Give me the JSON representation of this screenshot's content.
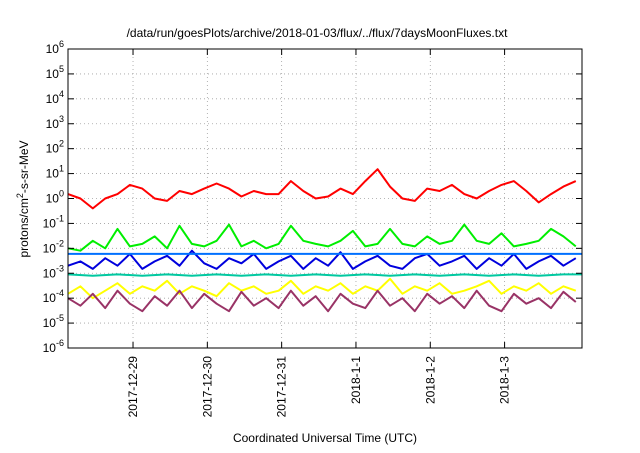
{
  "chart_data": {
    "type": "line",
    "title": "/data/run/goesPlots/archive/2018-01-03/flux/../flux/7daysMoonFluxes.txt",
    "xlabel": "Coordinated Universal Time (UTC)",
    "ylabel": {
      "base": "protons/cm",
      "sup": "2",
      "rest": "-s-sr-MeV"
    },
    "yscale": "log",
    "ylim": [
      1e-06,
      1000000.0
    ],
    "xlim": [
      "2017-12-28T03:00",
      "2018-01-04T01:00"
    ],
    "y_ticks": [
      {
        "value": 1e-06,
        "base": "10",
        "exp": "-6"
      },
      {
        "value": 1e-05,
        "base": "10",
        "exp": "-5"
      },
      {
        "value": 0.0001,
        "base": "10",
        "exp": "-4"
      },
      {
        "value": 0.001,
        "base": "10",
        "exp": "-3"
      },
      {
        "value": 0.01,
        "base": "10",
        "exp": "-2"
      },
      {
        "value": 0.1,
        "base": "10",
        "exp": "-1"
      },
      {
        "value": 1,
        "base": "10",
        "exp": "0"
      },
      {
        "value": 10,
        "base": "10",
        "exp": "1"
      },
      {
        "value": 100,
        "base": "10",
        "exp": "2"
      },
      {
        "value": 1000,
        "base": "10",
        "exp": "3"
      },
      {
        "value": 10000,
        "base": "10",
        "exp": "4"
      },
      {
        "value": 100000,
        "base": "10",
        "exp": "5"
      },
      {
        "value": 1000000,
        "base": "10",
        "exp": "6"
      }
    ],
    "x_ticks": [
      {
        "value": "2017-12-29T00:00",
        "label": "2017-12-29"
      },
      {
        "value": "2017-12-30T00:00",
        "label": "2017-12-30"
      },
      {
        "value": "2017-12-31T00:00",
        "label": "2017-12-31"
      },
      {
        "value": "2018-01-01T00:00",
        "label": "2018-1-1"
      },
      {
        "value": "2018-01-02T00:00",
        "label": "2018-1-2"
      },
      {
        "value": "2018-01-03T00:00",
        "label": "2018-1-3"
      }
    ],
    "grid": true,
    "series": [
      {
        "color": "#ff0000",
        "x": [
          "2017-12-28T03:00",
          "2017-12-28T07:00",
          "2017-12-28T11:00",
          "2017-12-28T15:00",
          "2017-12-28T19:00",
          "2017-12-28T23:00",
          "2017-12-29T03:00",
          "2017-12-29T07:00",
          "2017-12-29T11:00",
          "2017-12-29T15:00",
          "2017-12-29T19:00",
          "2017-12-29T23:00",
          "2017-12-30T03:00",
          "2017-12-30T07:00",
          "2017-12-30T11:00",
          "2017-12-30T15:00",
          "2017-12-30T19:00",
          "2017-12-30T23:00",
          "2017-12-31T03:00",
          "2017-12-31T07:00",
          "2017-12-31T11:00",
          "2017-12-31T15:00",
          "2017-12-31T19:00",
          "2017-12-31T23:00",
          "2018-01-01T03:00",
          "2018-01-01T07:00",
          "2018-01-01T11:00",
          "2018-01-01T15:00",
          "2018-01-01T19:00",
          "2018-01-01T23:00",
          "2018-01-02T03:00",
          "2018-01-02T07:00",
          "2018-01-02T11:00",
          "2018-01-02T15:00",
          "2018-01-02T19:00",
          "2018-01-02T23:00",
          "2018-01-03T03:00",
          "2018-01-03T07:00",
          "2018-01-03T11:00",
          "2018-01-03T15:00",
          "2018-01-03T19:00",
          "2018-01-03T23:00"
        ],
        "values": [
          1.5,
          1.0,
          0.4,
          1.0,
          1.5,
          3.5,
          2.5,
          1.0,
          0.8,
          2.0,
          1.5,
          2.5,
          4.0,
          2.5,
          1.2,
          2.0,
          1.5,
          1.5,
          5.0,
          2.0,
          1.0,
          1.2,
          2.5,
          1.5,
          5.0,
          15.0,
          3.0,
          1.0,
          0.8,
          2.5,
          2.0,
          3.5,
          1.5,
          1.0,
          2.0,
          3.5,
          5.0,
          2.0,
          0.7,
          1.5,
          3.0,
          5.0
        ]
      },
      {
        "color": "#00ee00",
        "x": [
          "2017-12-28T03:00",
          "2017-12-28T07:00",
          "2017-12-28T11:00",
          "2017-12-28T15:00",
          "2017-12-28T19:00",
          "2017-12-28T23:00",
          "2017-12-29T03:00",
          "2017-12-29T07:00",
          "2017-12-29T11:00",
          "2017-12-29T15:00",
          "2017-12-29T19:00",
          "2017-12-29T23:00",
          "2017-12-30T03:00",
          "2017-12-30T07:00",
          "2017-12-30T11:00",
          "2017-12-30T15:00",
          "2017-12-30T19:00",
          "2017-12-30T23:00",
          "2017-12-31T03:00",
          "2017-12-31T07:00",
          "2017-12-31T11:00",
          "2017-12-31T15:00",
          "2017-12-31T19:00",
          "2017-12-31T23:00",
          "2018-01-01T03:00",
          "2018-01-01T07:00",
          "2018-01-01T11:00",
          "2018-01-01T15:00",
          "2018-01-01T19:00",
          "2018-01-01T23:00",
          "2018-01-02T03:00",
          "2018-01-02T07:00",
          "2018-01-02T11:00",
          "2018-01-02T15:00",
          "2018-01-02T19:00",
          "2018-01-02T23:00",
          "2018-01-03T03:00",
          "2018-01-03T07:00",
          "2018-01-03T11:00",
          "2018-01-03T15:00",
          "2018-01-03T19:00",
          "2018-01-03T23:00"
        ],
        "values": [
          0.01,
          0.008,
          0.02,
          0.01,
          0.06,
          0.012,
          0.015,
          0.03,
          0.01,
          0.08,
          0.015,
          0.012,
          0.02,
          0.09,
          0.012,
          0.02,
          0.01,
          0.015,
          0.08,
          0.02,
          0.015,
          0.012,
          0.02,
          0.05,
          0.012,
          0.015,
          0.06,
          0.015,
          0.012,
          0.03,
          0.015,
          0.02,
          0.09,
          0.02,
          0.015,
          0.04,
          0.012,
          0.015,
          0.02,
          0.06,
          0.03,
          0.012
        ]
      },
      {
        "color": "#0000dd",
        "x": [
          "2017-12-28T03:00",
          "2017-12-28T07:00",
          "2017-12-28T11:00",
          "2017-12-28T15:00",
          "2017-12-28T19:00",
          "2017-12-28T23:00",
          "2017-12-29T03:00",
          "2017-12-29T07:00",
          "2017-12-29T11:00",
          "2017-12-29T15:00",
          "2017-12-29T19:00",
          "2017-12-29T23:00",
          "2017-12-30T03:00",
          "2017-12-30T07:00",
          "2017-12-30T11:00",
          "2017-12-30T15:00",
          "2017-12-30T19:00",
          "2017-12-30T23:00",
          "2017-12-31T03:00",
          "2017-12-31T07:00",
          "2017-12-31T11:00",
          "2017-12-31T15:00",
          "2017-12-31T19:00",
          "2017-12-31T23:00",
          "2018-01-01T03:00",
          "2018-01-01T07:00",
          "2018-01-01T11:00",
          "2018-01-01T15:00",
          "2018-01-01T19:00",
          "2018-01-01T23:00",
          "2018-01-02T03:00",
          "2018-01-02T07:00",
          "2018-01-02T11:00",
          "2018-01-02T15:00",
          "2018-01-02T19:00",
          "2018-01-02T23:00",
          "2018-01-03T03:00",
          "2018-01-03T07:00",
          "2018-01-03T11:00",
          "2018-01-03T15:00",
          "2018-01-03T19:00",
          "2018-01-03T23:00"
        ],
        "values": [
          0.002,
          0.003,
          0.0015,
          0.004,
          0.002,
          0.006,
          0.0015,
          0.003,
          0.005,
          0.002,
          0.008,
          0.0025,
          0.0015,
          0.004,
          0.0025,
          0.006,
          0.0015,
          0.003,
          0.005,
          0.0015,
          0.004,
          0.002,
          0.007,
          0.0015,
          0.003,
          0.005,
          0.002,
          0.0015,
          0.004,
          0.006,
          0.002,
          0.003,
          0.005,
          0.0015,
          0.004,
          0.002,
          0.006,
          0.0015,
          0.003,
          0.005,
          0.002,
          0.004
        ]
      },
      {
        "color": "#0070ff",
        "x": [
          "2017-12-28T03:00",
          "2017-12-28T15:00",
          "2017-12-29T03:00",
          "2017-12-29T15:00",
          "2017-12-30T03:00",
          "2017-12-30T15:00",
          "2017-12-31T03:00",
          "2017-12-31T15:00",
          "2018-01-01T03:00",
          "2018-01-01T15:00",
          "2018-01-02T03:00",
          "2018-01-02T15:00",
          "2018-01-03T03:00",
          "2018-01-03T15:00",
          "2018-01-04T01:00"
        ],
        "values": [
          0.006,
          0.006,
          0.006,
          0.006,
          0.006,
          0.006,
          0.006,
          0.006,
          0.006,
          0.006,
          0.006,
          0.006,
          0.006,
          0.006,
          0.006
        ]
      },
      {
        "color": "#00c8a0",
        "x": [
          "2017-12-28T03:00",
          "2017-12-28T11:00",
          "2017-12-28T19:00",
          "2017-12-29T03:00",
          "2017-12-29T11:00",
          "2017-12-29T19:00",
          "2017-12-30T03:00",
          "2017-12-30T11:00",
          "2017-12-30T19:00",
          "2017-12-31T03:00",
          "2017-12-31T11:00",
          "2017-12-31T19:00",
          "2018-01-01T03:00",
          "2018-01-01T11:00",
          "2018-01-01T19:00",
          "2018-01-02T03:00",
          "2018-01-02T11:00",
          "2018-01-02T19:00",
          "2018-01-03T03:00",
          "2018-01-03T11:00",
          "2018-01-03T19:00",
          "2018-01-04T01:00"
        ],
        "values": [
          0.0009,
          0.0008,
          0.0009,
          0.0008,
          0.0009,
          0.0008,
          0.0009,
          0.0008,
          0.0009,
          0.0008,
          0.0009,
          0.0008,
          0.0009,
          0.0008,
          0.0009,
          0.0008,
          0.0009,
          0.0008,
          0.0009,
          0.0008,
          0.0009,
          0.0009
        ]
      },
      {
        "color": "#ffff00",
        "x": [
          "2017-12-28T03:00",
          "2017-12-28T07:00",
          "2017-12-28T11:00",
          "2017-12-28T15:00",
          "2017-12-28T19:00",
          "2017-12-28T23:00",
          "2017-12-29T03:00",
          "2017-12-29T07:00",
          "2017-12-29T11:00",
          "2017-12-29T15:00",
          "2017-12-29T19:00",
          "2017-12-29T23:00",
          "2017-12-30T03:00",
          "2017-12-30T07:00",
          "2017-12-30T11:00",
          "2017-12-30T15:00",
          "2017-12-30T19:00",
          "2017-12-30T23:00",
          "2017-12-31T03:00",
          "2017-12-31T07:00",
          "2017-12-31T11:00",
          "2017-12-31T15:00",
          "2017-12-31T19:00",
          "2017-12-31T23:00",
          "2018-01-01T03:00",
          "2018-01-01T07:00",
          "2018-01-01T11:00",
          "2018-01-01T15:00",
          "2018-01-01T19:00",
          "2018-01-01T23:00",
          "2018-01-02T03:00",
          "2018-01-02T07:00",
          "2018-01-02T11:00",
          "2018-01-02T15:00",
          "2018-01-02T19:00",
          "2018-01-02T23:00",
          "2018-01-03T03:00",
          "2018-01-03T07:00",
          "2018-01-03T11:00",
          "2018-01-03T15:00",
          "2018-01-03T19:00",
          "2018-01-03T23:00"
        ],
        "values": [
          0.00015,
          0.0003,
          0.0001,
          0.0002,
          0.0004,
          0.00015,
          0.0003,
          0.0002,
          0.0005,
          0.00015,
          0.0003,
          0.0002,
          0.00012,
          0.0004,
          0.0002,
          0.0003,
          0.00015,
          0.0002,
          0.0005,
          0.00015,
          0.0003,
          0.0002,
          0.0004,
          0.00015,
          0.0003,
          0.0002,
          0.0006,
          0.00015,
          0.0003,
          0.0002,
          0.0004,
          0.00015,
          0.0002,
          0.0003,
          0.0005,
          0.00015,
          0.0003,
          0.0002,
          0.0004,
          0.00015,
          0.0003,
          0.0002
        ]
      },
      {
        "color": "#993366",
        "x": [
          "2017-12-28T03:00",
          "2017-12-28T07:00",
          "2017-12-28T11:00",
          "2017-12-28T15:00",
          "2017-12-28T19:00",
          "2017-12-28T23:00",
          "2017-12-29T03:00",
          "2017-12-29T07:00",
          "2017-12-29T11:00",
          "2017-12-29T15:00",
          "2017-12-29T19:00",
          "2017-12-29T23:00",
          "2017-12-30T03:00",
          "2017-12-30T07:00",
          "2017-12-30T11:00",
          "2017-12-30T15:00",
          "2017-12-30T19:00",
          "2017-12-30T23:00",
          "2017-12-31T03:00",
          "2017-12-31T07:00",
          "2017-12-31T11:00",
          "2017-12-31T15:00",
          "2017-12-31T19:00",
          "2017-12-31T23:00",
          "2018-01-01T03:00",
          "2018-01-01T07:00",
          "2018-01-01T11:00",
          "2018-01-01T15:00",
          "2018-01-01T19:00",
          "2018-01-01T23:00",
          "2018-01-02T03:00",
          "2018-01-02T07:00",
          "2018-01-02T11:00",
          "2018-01-02T15:00",
          "2018-01-02T19:00",
          "2018-01-02T23:00",
          "2018-01-03T03:00",
          "2018-01-03T07:00",
          "2018-01-03T11:00",
          "2018-01-03T15:00",
          "2018-01-03T19:00",
          "2018-01-03T23:00"
        ],
        "values": [
          0.0001,
          5e-05,
          0.00015,
          4e-05,
          0.0002,
          6e-05,
          3e-05,
          0.00012,
          5e-05,
          0.0002,
          4e-05,
          0.00015,
          6e-05,
          3e-05,
          0.00018,
          5e-05,
          0.0001,
          4e-05,
          0.0002,
          5e-05,
          0.00012,
          3e-05,
          0.00015,
          6e-05,
          4e-05,
          0.0002,
          5e-05,
          0.0001,
          3e-05,
          0.00015,
          6e-05,
          0.00012,
          4e-05,
          0.0002,
          5e-05,
          3e-05,
          0.00015,
          6e-05,
          0.0001,
          4e-05,
          0.00018,
          7e-05
        ]
      }
    ]
  }
}
